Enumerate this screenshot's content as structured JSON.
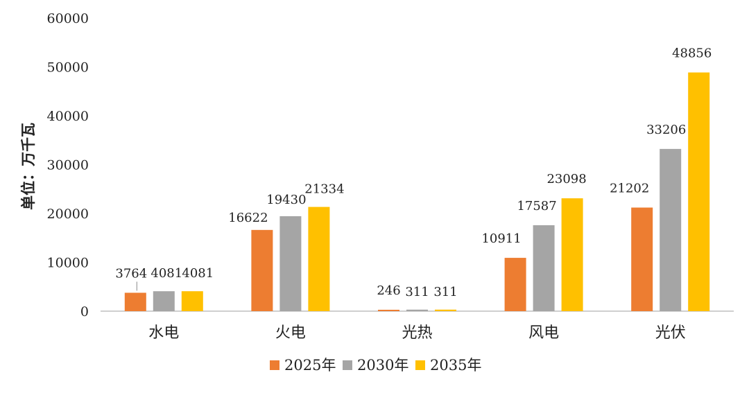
{
  "chart_data": {
    "type": "bar",
    "title": "",
    "xlabel": "",
    "ylabel": "单位：万千瓦",
    "ylim": [
      0,
      60000
    ],
    "yticks": [
      0,
      10000,
      20000,
      30000,
      40000,
      50000,
      60000
    ],
    "grid": false,
    "legend_position": "bottom",
    "categories": [
      "水电",
      "火电",
      "光热",
      "风电",
      "光伏"
    ],
    "series": [
      {
        "name": "2025年",
        "color": "#ED7D31",
        "values": [
          3764,
          16622,
          246,
          10911,
          21202
        ]
      },
      {
        "name": "2030年",
        "color": "#A5A5A5",
        "values": [
          4081,
          19430,
          311,
          17587,
          33206
        ]
      },
      {
        "name": "2035年",
        "color": "#FFC000",
        "values": [
          4081,
          21334,
          311,
          23098,
          48856
        ]
      }
    ]
  }
}
